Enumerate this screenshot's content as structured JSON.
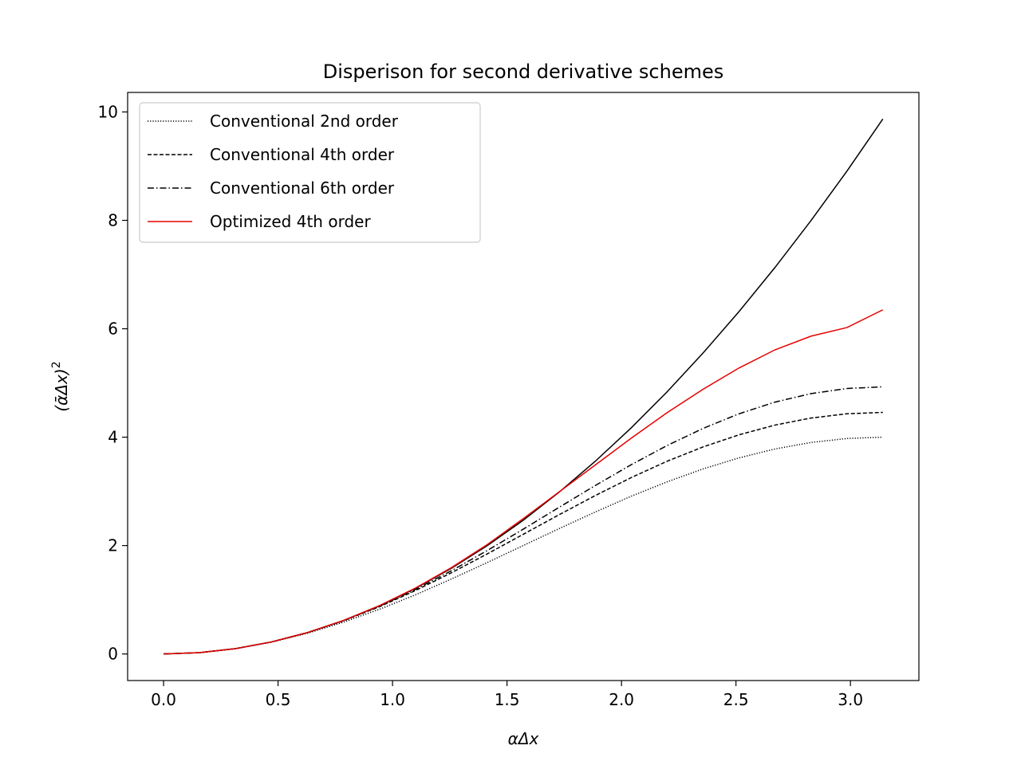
{
  "chart_data": {
    "type": "line",
    "title": "Disperison for second derivative schemes",
    "xlabel": "αΔx",
    "ylabel_parts": {
      "open": "(",
      "sym": "ᾱΔx",
      "close": ")",
      "sup": "2"
    },
    "xlim": [
      -0.157,
      3.299
    ],
    "ylim": [
      -0.49,
      10.36
    ],
    "xticks": [
      0.0,
      0.5,
      1.0,
      1.5,
      2.0,
      2.5,
      3.0
    ],
    "xtick_labels": [
      "0.0",
      "0.5",
      "1.0",
      "1.5",
      "2.0",
      "2.5",
      "3.0"
    ],
    "yticks": [
      0,
      2,
      4,
      6,
      8,
      10
    ],
    "ytick_labels": [
      "0",
      "2",
      "4",
      "6",
      "8",
      "10"
    ],
    "grid": false,
    "legend_position": "top-left",
    "x": [
      0.0,
      0.1571,
      0.3142,
      0.4712,
      0.6283,
      0.7854,
      0.9425,
      1.0996,
      1.2566,
      1.4137,
      1.5708,
      1.7279,
      1.885,
      2.042,
      2.1991,
      2.3562,
      2.5133,
      2.6704,
      2.8274,
      2.9845,
      3.1416
    ],
    "series": [
      {
        "style": "solid",
        "color": "#000000",
        "values": [
          0.0,
          0.0247,
          0.0987,
          0.2221,
          0.3948,
          0.6169,
          0.8883,
          1.2091,
          1.5791,
          1.9986,
          2.4674,
          2.9855,
          3.5531,
          4.1699,
          4.8361,
          5.5517,
          6.3165,
          7.1308,
          7.9944,
          8.9073,
          9.8696
        ]
      },
      {
        "name": "Conventional 2nd order",
        "style": "dotted",
        "color": "#000000",
        "values": [
          0.0,
          0.0246,
          0.0979,
          0.2179,
          0.382,
          0.5858,
          0.824,
          1.0905,
          1.382,
          1.6867,
          2.0,
          2.3133,
          2.618,
          2.9097,
          3.1756,
          3.4142,
          3.618,
          3.7822,
          3.9021,
          3.9754,
          4.0
        ]
      },
      {
        "name": "Conventional 4th order",
        "style": "dashed",
        "color": "#000000",
        "values": [
          0.0,
          0.0247,
          0.0987,
          0.2218,
          0.3932,
          0.6111,
          0.8716,
          1.1692,
          1.4969,
          1.8464,
          2.2074,
          2.5696,
          2.9215,
          3.2532,
          3.5557,
          3.8198,
          4.0433,
          4.2228,
          4.3528,
          4.4315,
          4.4574
        ]
      },
      {
        "name": "Conventional 6th order",
        "style": "dashdot",
        "color": "#000000",
        "values": [
          0.0,
          0.0247,
          0.0987,
          0.222,
          0.3943,
          0.6147,
          0.8811,
          1.1895,
          1.5341,
          1.9083,
          2.3022,
          2.7064,
          3.1065,
          3.4905,
          3.8454,
          4.1612,
          4.4308,
          4.6469,
          4.8032,
          4.8977,
          4.9293
        ]
      },
      {
        "name": "Optimized 4th order",
        "style": "solid",
        "color": "#e60000",
        "values": [
          0.0,
          0.0247,
          0.0987,
          0.2221,
          0.3948,
          0.6175,
          0.8908,
          1.2152,
          1.5912,
          2.0186,
          2.4961,
          2.9906,
          3.4852,
          3.9797,
          4.4522,
          4.8834,
          5.2765,
          5.6113,
          5.8629,
          6.0215,
          6.35
        ]
      }
    ]
  }
}
